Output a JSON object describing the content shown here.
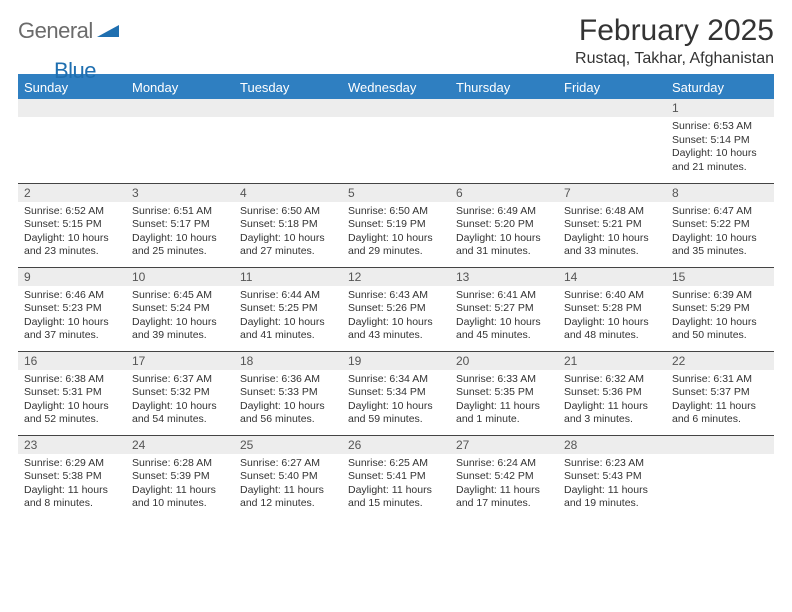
{
  "logo": {
    "general": "General",
    "blue": "Blue"
  },
  "title": "February 2025",
  "location": "Rustaq, Takhar, Afghanistan",
  "colors": {
    "header_bg": "#2f7fc1",
    "header_text": "#ffffff",
    "daynum_bg": "#ededed",
    "border": "#444444",
    "logo_gray": "#6b6b6b",
    "logo_blue": "#1f6fb0"
  },
  "weekdays": [
    "Sunday",
    "Monday",
    "Tuesday",
    "Wednesday",
    "Thursday",
    "Friday",
    "Saturday"
  ],
  "weeks": [
    [
      {
        "empty": true
      },
      {
        "empty": true
      },
      {
        "empty": true
      },
      {
        "empty": true
      },
      {
        "empty": true
      },
      {
        "empty": true
      },
      {
        "day": "1",
        "sunrise": "Sunrise: 6:53 AM",
        "sunset": "Sunset: 5:14 PM",
        "daylight": "Daylight: 10 hours and 21 minutes."
      }
    ],
    [
      {
        "day": "2",
        "sunrise": "Sunrise: 6:52 AM",
        "sunset": "Sunset: 5:15 PM",
        "daylight": "Daylight: 10 hours and 23 minutes."
      },
      {
        "day": "3",
        "sunrise": "Sunrise: 6:51 AM",
        "sunset": "Sunset: 5:17 PM",
        "daylight": "Daylight: 10 hours and 25 minutes."
      },
      {
        "day": "4",
        "sunrise": "Sunrise: 6:50 AM",
        "sunset": "Sunset: 5:18 PM",
        "daylight": "Daylight: 10 hours and 27 minutes."
      },
      {
        "day": "5",
        "sunrise": "Sunrise: 6:50 AM",
        "sunset": "Sunset: 5:19 PM",
        "daylight": "Daylight: 10 hours and 29 minutes."
      },
      {
        "day": "6",
        "sunrise": "Sunrise: 6:49 AM",
        "sunset": "Sunset: 5:20 PM",
        "daylight": "Daylight: 10 hours and 31 minutes."
      },
      {
        "day": "7",
        "sunrise": "Sunrise: 6:48 AM",
        "sunset": "Sunset: 5:21 PM",
        "daylight": "Daylight: 10 hours and 33 minutes."
      },
      {
        "day": "8",
        "sunrise": "Sunrise: 6:47 AM",
        "sunset": "Sunset: 5:22 PM",
        "daylight": "Daylight: 10 hours and 35 minutes."
      }
    ],
    [
      {
        "day": "9",
        "sunrise": "Sunrise: 6:46 AM",
        "sunset": "Sunset: 5:23 PM",
        "daylight": "Daylight: 10 hours and 37 minutes."
      },
      {
        "day": "10",
        "sunrise": "Sunrise: 6:45 AM",
        "sunset": "Sunset: 5:24 PM",
        "daylight": "Daylight: 10 hours and 39 minutes."
      },
      {
        "day": "11",
        "sunrise": "Sunrise: 6:44 AM",
        "sunset": "Sunset: 5:25 PM",
        "daylight": "Daylight: 10 hours and 41 minutes."
      },
      {
        "day": "12",
        "sunrise": "Sunrise: 6:43 AM",
        "sunset": "Sunset: 5:26 PM",
        "daylight": "Daylight: 10 hours and 43 minutes."
      },
      {
        "day": "13",
        "sunrise": "Sunrise: 6:41 AM",
        "sunset": "Sunset: 5:27 PM",
        "daylight": "Daylight: 10 hours and 45 minutes."
      },
      {
        "day": "14",
        "sunrise": "Sunrise: 6:40 AM",
        "sunset": "Sunset: 5:28 PM",
        "daylight": "Daylight: 10 hours and 48 minutes."
      },
      {
        "day": "15",
        "sunrise": "Sunrise: 6:39 AM",
        "sunset": "Sunset: 5:29 PM",
        "daylight": "Daylight: 10 hours and 50 minutes."
      }
    ],
    [
      {
        "day": "16",
        "sunrise": "Sunrise: 6:38 AM",
        "sunset": "Sunset: 5:31 PM",
        "daylight": "Daylight: 10 hours and 52 minutes."
      },
      {
        "day": "17",
        "sunrise": "Sunrise: 6:37 AM",
        "sunset": "Sunset: 5:32 PM",
        "daylight": "Daylight: 10 hours and 54 minutes."
      },
      {
        "day": "18",
        "sunrise": "Sunrise: 6:36 AM",
        "sunset": "Sunset: 5:33 PM",
        "daylight": "Daylight: 10 hours and 56 minutes."
      },
      {
        "day": "19",
        "sunrise": "Sunrise: 6:34 AM",
        "sunset": "Sunset: 5:34 PM",
        "daylight": "Daylight: 10 hours and 59 minutes."
      },
      {
        "day": "20",
        "sunrise": "Sunrise: 6:33 AM",
        "sunset": "Sunset: 5:35 PM",
        "daylight": "Daylight: 11 hours and 1 minute."
      },
      {
        "day": "21",
        "sunrise": "Sunrise: 6:32 AM",
        "sunset": "Sunset: 5:36 PM",
        "daylight": "Daylight: 11 hours and 3 minutes."
      },
      {
        "day": "22",
        "sunrise": "Sunrise: 6:31 AM",
        "sunset": "Sunset: 5:37 PM",
        "daylight": "Daylight: 11 hours and 6 minutes."
      }
    ],
    [
      {
        "day": "23",
        "sunrise": "Sunrise: 6:29 AM",
        "sunset": "Sunset: 5:38 PM",
        "daylight": "Daylight: 11 hours and 8 minutes."
      },
      {
        "day": "24",
        "sunrise": "Sunrise: 6:28 AM",
        "sunset": "Sunset: 5:39 PM",
        "daylight": "Daylight: 11 hours and 10 minutes."
      },
      {
        "day": "25",
        "sunrise": "Sunrise: 6:27 AM",
        "sunset": "Sunset: 5:40 PM",
        "daylight": "Daylight: 11 hours and 12 minutes."
      },
      {
        "day": "26",
        "sunrise": "Sunrise: 6:25 AM",
        "sunset": "Sunset: 5:41 PM",
        "daylight": "Daylight: 11 hours and 15 minutes."
      },
      {
        "day": "27",
        "sunrise": "Sunrise: 6:24 AM",
        "sunset": "Sunset: 5:42 PM",
        "daylight": "Daylight: 11 hours and 17 minutes."
      },
      {
        "day": "28",
        "sunrise": "Sunrise: 6:23 AM",
        "sunset": "Sunset: 5:43 PM",
        "daylight": "Daylight: 11 hours and 19 minutes."
      },
      {
        "empty": true
      }
    ]
  ]
}
